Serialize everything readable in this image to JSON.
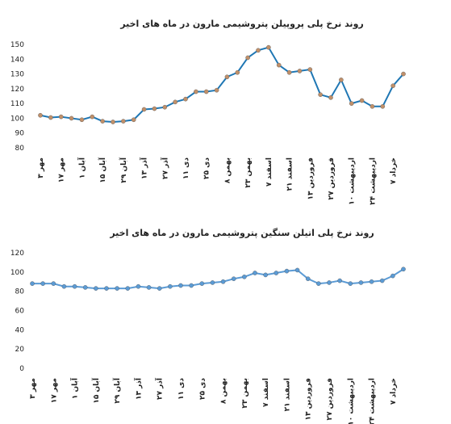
{
  "chart_data": [
    {
      "type": "line",
      "title": "روند نرخ پلی پروپیلن پتروشیمی مارون در ماه های اخیر",
      "categories": [
        "۳ مهر",
        null,
        "۱۷ مهر",
        null,
        "۱ آبان",
        null,
        "۱۵ آبان",
        null,
        "۲۹ آبان",
        null,
        "۱۳ آذر",
        null,
        "۲۷ آذر",
        null,
        "۱۱ دی",
        null,
        "۲۵ دی",
        null,
        "۸ بهمن",
        null,
        "۲۳ بهمن",
        null,
        "۷ اسفند",
        null,
        "۲۱ اسفند",
        null,
        "۱۳ فروردین",
        null,
        "۲۷ فروردین",
        null,
        "۱۰ اردیبهشت",
        null,
        "۲۴ اردیبهشت",
        null,
        "۷ خرداد",
        null
      ],
      "series": [
        {
          "color": "#1f77b4",
          "marker_color": "#c0906a",
          "values": [
            102,
            100.5,
            101,
            100,
            99,
            101,
            98,
            97.5,
            98,
            99,
            106,
            106.5,
            107.5,
            111,
            113,
            118,
            118,
            119,
            128,
            131,
            141,
            146,
            148,
            136,
            131,
            132,
            133,
            116,
            114,
            126,
            110,
            112,
            108,
            108,
            122,
            130
          ]
        }
      ],
      "ylim": [
        80,
        150
      ],
      "yticks": [
        80,
        90,
        100,
        110,
        120,
        130,
        140,
        150
      ]
    },
    {
      "type": "line",
      "title": "روند نرخ پلی اتیلن سنگین پتروشیمی مارون در ماه های اخیر",
      "categories": [
        "۳ مهر",
        null,
        "۱۷ مهر",
        null,
        "۱ آبان",
        null,
        "۱۵ آبان",
        null,
        "۲۹ آبان",
        null,
        "۱۳ آذر",
        null,
        "۲۷ آذر",
        null,
        "۱۱ دی",
        null,
        "۲۵ دی",
        null,
        "۸ بهمن",
        null,
        "۲۳ بهمن",
        null,
        "۷ اسفند",
        null,
        "۲۱ اسفند",
        null,
        "۱۳ فروردین",
        null,
        "۲۷ فروردین",
        null,
        "۱۰ اردیبهشت",
        null,
        "۲۴ اردیبهشت",
        null,
        "۷ خرداد",
        null
      ],
      "series": [
        {
          "color": "#5b9bd5",
          "marker_color": "#5b9bd5",
          "values": [
            88,
            88,
            88,
            85,
            85,
            84,
            83,
            83,
            83,
            83,
            85,
            84,
            83,
            85,
            86,
            86,
            88,
            89,
            90,
            93,
            95,
            99,
            97,
            99,
            101,
            102,
            93,
            88,
            89,
            91,
            88,
            89,
            90,
            91,
            96,
            103
          ]
        }
      ],
      "ylim": [
        0,
        120
      ],
      "yticks": [
        0,
        20,
        40,
        60,
        80,
        100,
        120
      ]
    }
  ]
}
